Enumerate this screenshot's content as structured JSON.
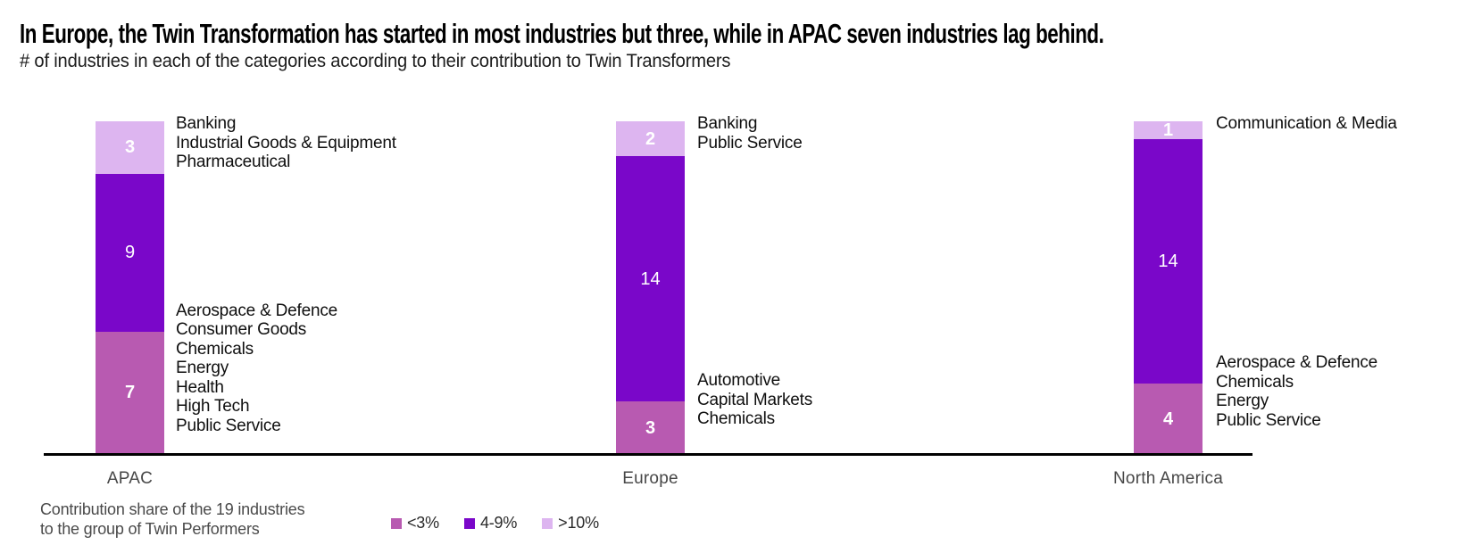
{
  "page": {
    "title": "In Europe, the Twin Transformation has started in most industries but three, while in APAC seven industries lag behind.",
    "subtitle": "# of industries in each of the categories according to their contribution to Twin Transformers"
  },
  "chart_data": {
    "type": "bar",
    "stacked": true,
    "title": "In Europe, the Twin Transformation has started in most industries but three, while in APAC seven industries lag behind.",
    "subtitle": "# of industries in each of the categories according to their contribution to Twin Transformers",
    "categories": [
      "APAC",
      "Europe",
      "North America"
    ],
    "series": [
      {
        "name": "<3%",
        "color": "#B85AB1",
        "values": [
          7,
          3,
          4
        ],
        "value_label_bold": true
      },
      {
        "name": "4-9%",
        "color": "#7A07C9",
        "values": [
          9,
          14,
          14
        ],
        "value_label_bold": false
      },
      {
        "name": ">10%",
        "color": "#DDB5F0",
        "values": [
          3,
          2,
          1
        ],
        "value_label_bold": true
      }
    ],
    "ylim": [
      0,
      19
    ],
    "grid": false,
    "legend_position": "bottom-left",
    "annotations": [
      {
        "category": "APAC",
        "position": "top",
        "industries": [
          "Banking",
          "Industrial Goods & Equipment",
          "Pharmaceutical"
        ]
      },
      {
        "category": "APAC",
        "position": "bottom",
        "industries": [
          "Aerospace & Defence",
          "Consumer Goods",
          "Chemicals",
          "Energy",
          "Health",
          "High Tech",
          "Public Service"
        ]
      },
      {
        "category": "Europe",
        "position": "top",
        "industries": [
          "Banking",
          "Public Service"
        ]
      },
      {
        "category": "Europe",
        "position": "bottom",
        "industries": [
          "Automotive",
          "Capital Markets",
          "Chemicals"
        ]
      },
      {
        "category": "North America",
        "position": "top",
        "industries": [
          "Communication & Media"
        ]
      },
      {
        "category": "North America",
        "position": "bottom",
        "industries": [
          "Aerospace & Defence",
          "Chemicals",
          "Energy",
          "Public Service"
        ]
      }
    ]
  },
  "legend": {
    "caption": [
      "Contribution share of the 19 industries",
      "to the group of Twin Performers"
    ],
    "items": [
      {
        "label": "<3%",
        "color": "#B85AB1"
      },
      {
        "label": "4-9%",
        "color": "#7A07C9"
      },
      {
        "label": ">10%",
        "color": "#DDB5F0"
      }
    ]
  }
}
